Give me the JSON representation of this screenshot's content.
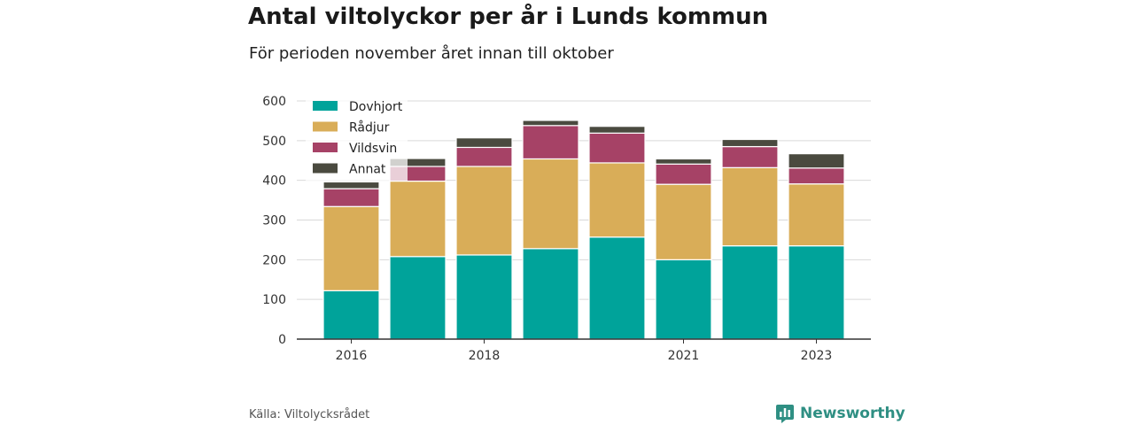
{
  "header": {
    "title": "Antal viltolyckor per år i Lunds kommun",
    "subtitle": "För perioden november året innan till oktober"
  },
  "footer": {
    "source": "Källa: Viltolycksrådet",
    "brand": "Newsworthy"
  },
  "colors": {
    "Dovhjort": "#00a39a",
    "Rådjur": "#d9ad58",
    "Vildsvin": "#a64266",
    "Annat": "#4a4a3f"
  },
  "chart_data": {
    "type": "bar",
    "stacked": true,
    "categories": [
      "2016",
      "2017",
      "2018",
      "2019",
      "2020",
      "2021",
      "2022",
      "2023"
    ],
    "x_tick_labels": [
      "2016",
      "",
      "2018",
      "",
      "",
      "2021",
      "",
      "2023"
    ],
    "series": [
      {
        "name": "Dovhjort",
        "values": [
          122,
          208,
          212,
          228,
          257,
          200,
          235,
          235
        ]
      },
      {
        "name": "Rådjur",
        "values": [
          212,
          190,
          223,
          226,
          187,
          190,
          197,
          156
        ]
      },
      {
        "name": "Vildsvin",
        "values": [
          45,
          37,
          48,
          84,
          75,
          51,
          53,
          40
        ]
      },
      {
        "name": "Annat",
        "values": [
          17,
          20,
          24,
          13,
          17,
          13,
          18,
          36
        ]
      }
    ],
    "ylim": [
      0,
      600
    ],
    "yticks": [
      0,
      100,
      200,
      300,
      400,
      500,
      600
    ],
    "grid": true,
    "legend": "top-left"
  }
}
